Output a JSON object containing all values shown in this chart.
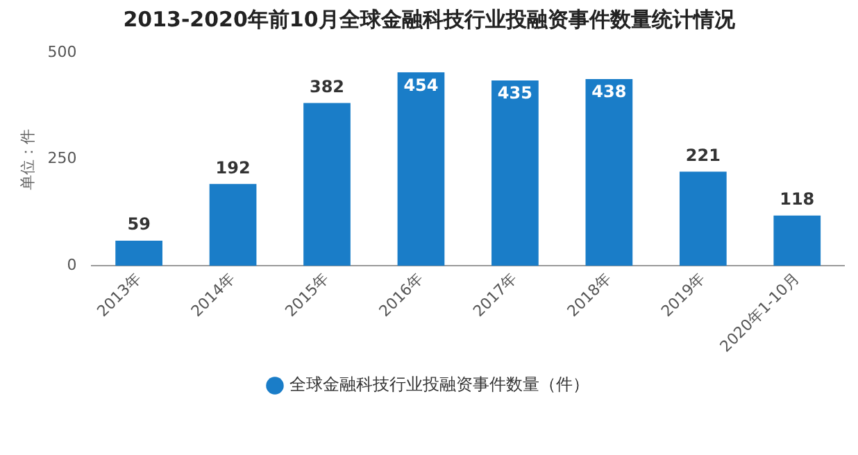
{
  "chart_data": {
    "type": "bar",
    "title": "2013-2020年前10月全球金融科技行业投融资事件数量统计情况",
    "ylabel": "单位：件",
    "categories": [
      "2013年",
      "2014年",
      "2015年",
      "2016年",
      "2017年",
      "2018年",
      "2019年",
      "2020年1-10月"
    ],
    "series": [
      {
        "name": "全球金融科技行业投融资事件数量（件）",
        "color": "#1a7dc8",
        "values": [
          59,
          192,
          382,
          454,
          435,
          438,
          221,
          118
        ]
      }
    ],
    "ylim": [
      0,
      500
    ],
    "yticks": [
      0,
      250,
      500
    ],
    "data_labels": true,
    "legend": "bottom",
    "grid": false
  }
}
